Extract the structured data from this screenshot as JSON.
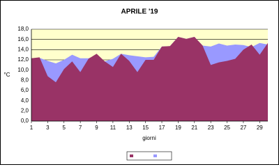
{
  "chart_data": {
    "type": "area",
    "title": "APRILE '19",
    "x_label": "giorni",
    "y_label": "°C",
    "x": [
      1,
      2,
      3,
      4,
      5,
      6,
      7,
      8,
      9,
      10,
      11,
      12,
      13,
      14,
      15,
      16,
      17,
      18,
      19,
      20,
      21,
      22,
      23,
      24,
      25,
      26,
      27,
      28,
      29,
      30
    ],
    "xlim": [
      1,
      30
    ],
    "xticks": [
      1,
      3,
      5,
      7,
      9,
      11,
      13,
      15,
      17,
      19,
      21,
      23,
      25,
      27,
      29
    ],
    "ylim": [
      0,
      18
    ],
    "yticks": [
      {
        "value": 0,
        "label": "0,0"
      },
      {
        "value": 2,
        "label": "2,0"
      },
      {
        "value": 4,
        "label": "4,0"
      },
      {
        "value": 6,
        "label": "6,0"
      },
      {
        "value": 8,
        "label": "8,0"
      },
      {
        "value": 10,
        "label": "10,0"
      },
      {
        "value": 12,
        "label": "12,0"
      },
      {
        "value": 14,
        "label": "14,0"
      },
      {
        "value": 16,
        "label": "16,0"
      },
      {
        "value": 18,
        "label": "18,0"
      }
    ],
    "grid": true,
    "series": [
      {
        "color": "#9999ff",
        "values": [
          12.3,
          12.4,
          11.8,
          11.3,
          12.0,
          13.0,
          12.3,
          12.3,
          12.9,
          11.7,
          12.2,
          13.2,
          12.9,
          12.7,
          12.5,
          12.6,
          14.6,
          14.7,
          16.5,
          16.1,
          16.5,
          14.8,
          14.6,
          15.2,
          14.8,
          15.0,
          14.9,
          14.5,
          15.3,
          15.0
        ]
      },
      {
        "color": "#993366",
        "values": [
          12.3,
          12.5,
          8.8,
          7.6,
          10.2,
          11.7,
          9.6,
          12.2,
          13.2,
          11.7,
          10.6,
          13.2,
          11.8,
          9.6,
          12.0,
          12.0,
          14.6,
          14.7,
          16.5,
          16.1,
          16.5,
          14.8,
          11.0,
          11.5,
          11.8,
          12.2,
          14.0,
          15.0,
          13.0,
          15.3
        ]
      }
    ]
  }
}
